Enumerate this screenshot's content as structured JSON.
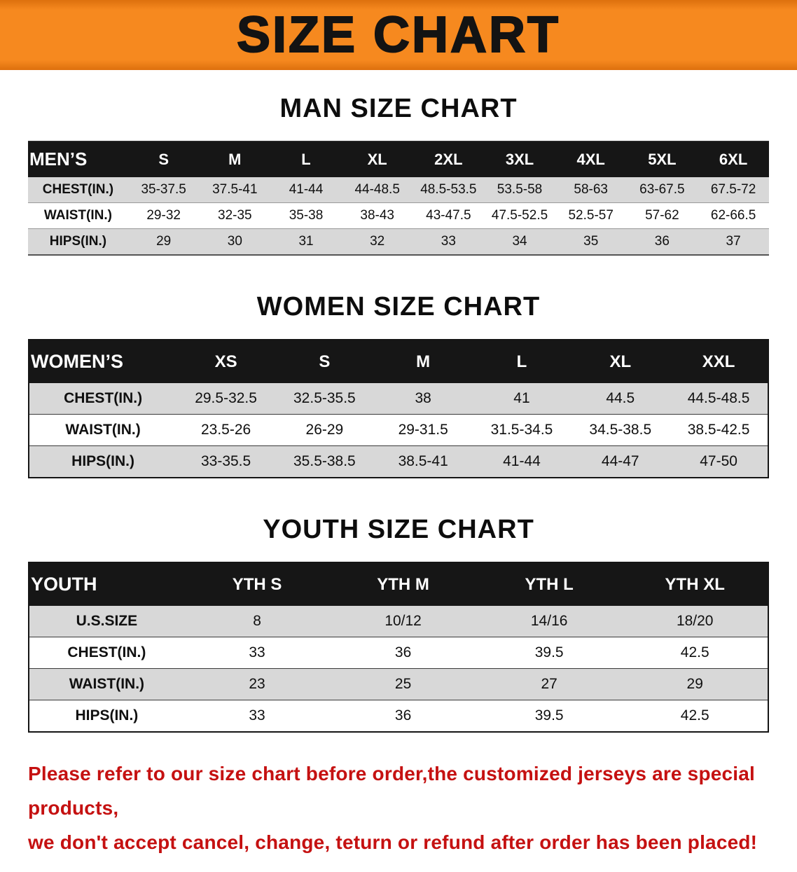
{
  "banner": {
    "title": "SIZE CHART"
  },
  "colors": {
    "accent": "#f6891f",
    "banner_edge": "#dd700d",
    "header_bg": "#161616",
    "header_text": "#ffffff",
    "stripe": "#d8d8d8",
    "text": "#101010",
    "notice": "#c51111"
  },
  "sections": [
    {
      "id": "men",
      "heading": "MAN SIZE CHART",
      "table": {
        "header": [
          "MEN’S",
          "S",
          "M",
          "L",
          "XL",
          "2XL",
          "3XL",
          "4XL",
          "5XL",
          "6XL"
        ],
        "rows": [
          [
            "CHEST(IN.)",
            "35-37.5",
            "37.5-41",
            "41-44",
            "44-48.5",
            "48.5-53.5",
            "53.5-58",
            "58-63",
            "63-67.5",
            "67.5-72"
          ],
          [
            "WAIST(IN.)",
            "29-32",
            "32-35",
            "35-38",
            "38-43",
            "43-47.5",
            "47.5-52.5",
            "52.5-57",
            "57-62",
            "62-66.5"
          ],
          [
            "HIPS(IN.)",
            "29",
            "30",
            "31",
            "32",
            "33",
            "34",
            "35",
            "36",
            "37"
          ]
        ]
      }
    },
    {
      "id": "women",
      "heading": "WOMEN SIZE CHART",
      "table": {
        "header": [
          "WOMEN’S",
          "XS",
          "S",
          "M",
          "L",
          "XL",
          "XXL"
        ],
        "rows": [
          [
            "CHEST(IN.)",
            "29.5-32.5",
            "32.5-35.5",
            "38",
            "41",
            "44.5",
            "44.5-48.5"
          ],
          [
            "WAIST(IN.)",
            "23.5-26",
            "26-29",
            "29-31.5",
            "31.5-34.5",
            "34.5-38.5",
            "38.5-42.5"
          ],
          [
            "HIPS(IN.)",
            "33-35.5",
            "35.5-38.5",
            "38.5-41",
            "41-44",
            "44-47",
            "47-50"
          ]
        ]
      }
    },
    {
      "id": "youth",
      "heading": "YOUTH SIZE CHART",
      "table": {
        "header": [
          "YOUTH",
          "YTH S",
          "YTH M",
          "YTH L",
          "YTH XL"
        ],
        "rows": [
          [
            "U.S.SIZE",
            "8",
            "10/12",
            "14/16",
            "18/20"
          ],
          [
            "CHEST(IN.)",
            "33",
            "36",
            "39.5",
            "42.5"
          ],
          [
            "WAIST(IN.)",
            "23",
            "25",
            "27",
            "29"
          ],
          [
            "HIPS(IN.)",
            "33",
            "36",
            "39.5",
            "42.5"
          ]
        ]
      }
    }
  ],
  "footer": {
    "line1": "Please refer to our size chart before order,the customized jerseys are special products,",
    "line2": "we don't accept cancel, change, teturn or refund after order has been placed!"
  }
}
